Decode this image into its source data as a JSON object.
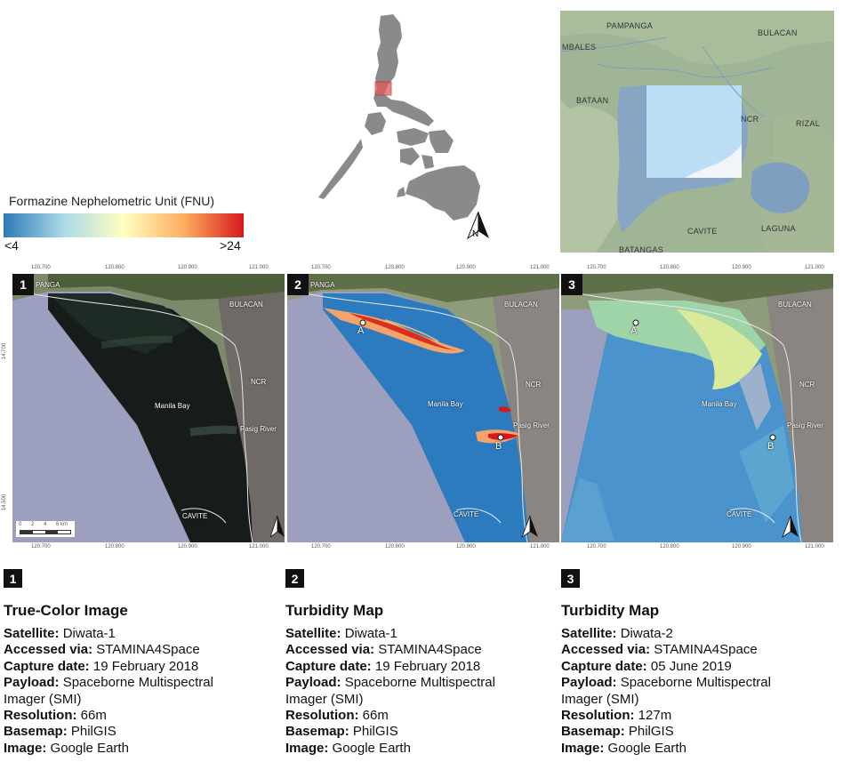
{
  "legend": {
    "title": "Formazine Nephelometric Unit (FNU)",
    "min_label": "<4",
    "max_label": ">24",
    "colors": [
      "#2c7bb6",
      "#abd9e9",
      "#ffffbf",
      "#fdae61",
      "#d7191c"
    ]
  },
  "inset_map": {
    "labels": [
      "PAMPANGA",
      "BULACAN",
      "MBALES",
      "BATAAN",
      "NCR",
      "RIZAL",
      "CAVITE",
      "LAGUNA",
      "BATANGAS"
    ]
  },
  "ticks": {
    "top": [
      "120.700",
      "120.800",
      "120.900",
      "121.000"
    ],
    "bottom": [
      "120.700",
      "120.800",
      "120.900",
      "121.000"
    ],
    "left": [
      "14.700",
      "14.500"
    ]
  },
  "panels": [
    {
      "badge": "1",
      "labels": {
        "province_nw": "PANGA",
        "bulacan": "BULACAN",
        "ncr": "NCR",
        "bay": "Manila Bay",
        "river": "Pasig River",
        "cavite": "CAVITE"
      },
      "point_a": "",
      "point_b": "",
      "scale_labels": [
        "0",
        "2",
        "4",
        "6 km"
      ]
    },
    {
      "badge": "2",
      "labels": {
        "province_nw": "PANGA",
        "bulacan": "BULACAN",
        "ncr": "NCR",
        "bay": "Manila Bay",
        "river": "Pasig River",
        "cavite": "CAVITE"
      },
      "point_a": "A",
      "point_b": "B"
    },
    {
      "badge": "3",
      "labels": {
        "province_nw": "",
        "bulacan": "BULACAN",
        "ncr": "NCR",
        "bay": "Manila Bay",
        "river": "Pasig River",
        "cavite": "CAVITE"
      },
      "point_a": "A",
      "point_b": "B"
    }
  ],
  "north_label": "N",
  "captions": [
    {
      "badge": "1",
      "title": "True-Color Image",
      "rows": [
        {
          "k": "Satellite:",
          "v": "Diwata-1"
        },
        {
          "k": "Accessed via:",
          "v": "STAMINA4Space"
        },
        {
          "k": "Capture date:",
          "v": "19 February 2018"
        },
        {
          "k": "Payload:",
          "v": "Spaceborne Multispectral Imager  (SMI)"
        },
        {
          "k": "Resolution:",
          "v": "66m"
        },
        {
          "k": "Basemap:",
          "v": "PhilGIS"
        },
        {
          "k": "Image:",
          "v": "Google Earth"
        }
      ]
    },
    {
      "badge": "2",
      "title": "Turbidity Map",
      "rows": [
        {
          "k": "Satellite:",
          "v": "Diwata-1"
        },
        {
          "k": "Accessed via:",
          "v": "STAMINA4Space"
        },
        {
          "k": "Capture date:",
          "v": "19 February 2018"
        },
        {
          "k": "Payload:",
          "v": "Spaceborne Multispectral Imager  (SMI)"
        },
        {
          "k": "Resolution:",
          "v": "66m"
        },
        {
          "k": "Basemap:",
          "v": "PhilGIS"
        },
        {
          "k": "Image:",
          "v": "Google Earth"
        }
      ]
    },
    {
      "badge": "3",
      "title": "Turbidity Map",
      "rows": [
        {
          "k": "Satellite:",
          "v": "Diwata-2"
        },
        {
          "k": "Accessed via:",
          "v": "STAMINA4Space"
        },
        {
          "k": "Capture date:",
          "v": "05 June 2019"
        },
        {
          "k": "Payload:",
          "v": "Spaceborne Multispectral Imager  (SMI)"
        },
        {
          "k": "Resolution:",
          "v": "127m"
        },
        {
          "k": "Basemap:",
          "v": "PhilGIS"
        },
        {
          "k": "Image:",
          "v": "Google Earth"
        }
      ]
    }
  ]
}
